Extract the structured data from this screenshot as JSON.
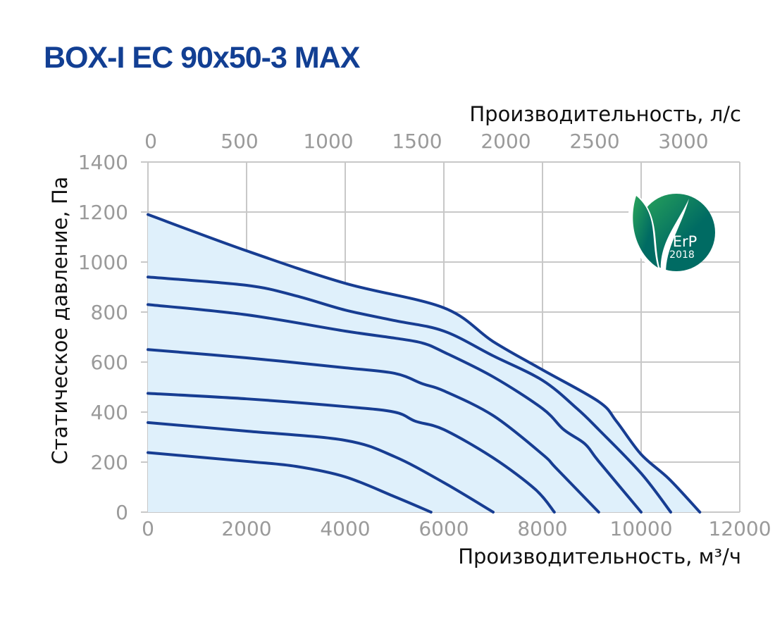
{
  "title": "BOX-I EC 90x50-3 MAX",
  "logo": {
    "text": "ErP",
    "year": "2018",
    "colors": [
      "#2aa55a",
      "#006b63"
    ]
  },
  "chart_data": {
    "type": "line",
    "xlabel": "Производительность, м³/ч",
    "x2label": "Производительность, л/с",
    "ylabel": "Статическое давление, Па",
    "xlim": [
      0,
      12000
    ],
    "ylim": [
      0,
      1400
    ],
    "xticks": [
      0,
      2000,
      4000,
      6000,
      8000,
      10000,
      12000
    ],
    "x2ticks": [
      0,
      500,
      1000,
      1500,
      2000,
      2500,
      3000
    ],
    "yticks": [
      0,
      200,
      400,
      600,
      800,
      1000,
      1200,
      1400
    ],
    "grid": true,
    "line_color": "#173d92",
    "fill_color": "#dff0fb",
    "series": [
      {
        "points": [
          [
            0,
            1190
          ],
          [
            2000,
            1045
          ],
          [
            4000,
            915
          ],
          [
            6000,
            817
          ],
          [
            7000,
            682
          ],
          [
            8000,
            569
          ],
          [
            9140,
            442
          ],
          [
            9500,
            363
          ],
          [
            10000,
            231
          ],
          [
            10570,
            132
          ],
          [
            11190,
            0
          ]
        ]
      },
      {
        "points": [
          [
            0,
            940
          ],
          [
            2000,
            907
          ],
          [
            3000,
            865
          ],
          [
            4000,
            808
          ],
          [
            5000,
            766
          ],
          [
            6000,
            724
          ],
          [
            7000,
            625
          ],
          [
            8000,
            527
          ],
          [
            8700,
            414
          ],
          [
            9140,
            330
          ],
          [
            10000,
            155
          ],
          [
            10600,
            0
          ]
        ]
      },
      {
        "points": [
          [
            0,
            830
          ],
          [
            2000,
            789
          ],
          [
            4000,
            724
          ],
          [
            5000,
            696
          ],
          [
            5570,
            676
          ],
          [
            6000,
            640
          ],
          [
            7000,
            541
          ],
          [
            8000,
            414
          ],
          [
            8430,
            330
          ],
          [
            8860,
            273
          ],
          [
            9140,
            203
          ],
          [
            10000,
            0
          ]
        ]
      },
      {
        "points": [
          [
            0,
            650
          ],
          [
            2000,
            617
          ],
          [
            4000,
            577
          ],
          [
            5000,
            555
          ],
          [
            5570,
            513
          ],
          [
            6000,
            485
          ],
          [
            7000,
            386
          ],
          [
            8000,
            231
          ],
          [
            8280,
            175
          ],
          [
            9140,
            0
          ]
        ]
      },
      {
        "points": [
          [
            0,
            475
          ],
          [
            2000,
            453
          ],
          [
            4000,
            422
          ],
          [
            5000,
            400
          ],
          [
            5430,
            363
          ],
          [
            6000,
            330
          ],
          [
            7000,
            217
          ],
          [
            7860,
            90
          ],
          [
            8240,
            0
          ]
        ]
      },
      {
        "points": [
          [
            0,
            358
          ],
          [
            2000,
            324
          ],
          [
            4000,
            287
          ],
          [
            5000,
            222
          ],
          [
            6000,
            118
          ],
          [
            7000,
            0
          ]
        ]
      },
      {
        "points": [
          [
            0,
            238
          ],
          [
            2000,
            203
          ],
          [
            3000,
            183
          ],
          [
            4000,
            141
          ],
          [
            5000,
            62
          ],
          [
            5740,
            0
          ]
        ]
      }
    ]
  }
}
